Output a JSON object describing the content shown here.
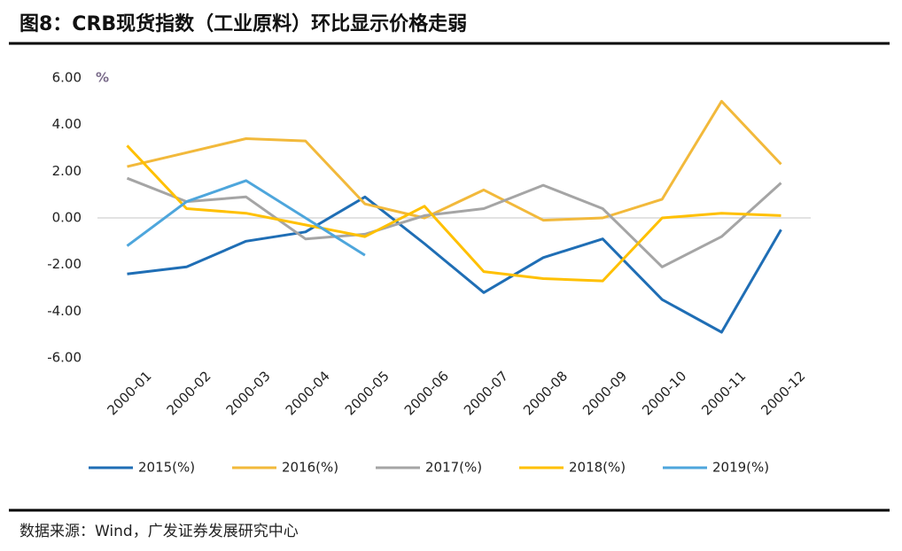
{
  "chart_data": {
    "type": "line",
    "title": "图8：CRB现货指数（工业原料）环比显示价格走弱",
    "y_unit": "%",
    "source": "数据来源：Wind，广发证券发展研究中心",
    "categories": [
      "2000-01",
      "2000-02",
      "2000-03",
      "2000-04",
      "2000-05",
      "2000-06",
      "2000-07",
      "2000-08",
      "2000-09",
      "2000-10",
      "2000-11",
      "2000-12"
    ],
    "ylim": [
      -6,
      6
    ],
    "yticks": [
      {
        "value": 6,
        "label": "6.00"
      },
      {
        "value": 4,
        "label": "4.00"
      },
      {
        "value": 2,
        "label": "2.00"
      },
      {
        "value": 0,
        "label": "0.00"
      },
      {
        "value": -2,
        "label": "-2.00"
      },
      {
        "value": -4,
        "label": "-4.00"
      },
      {
        "value": -6,
        "label": "-6.00"
      }
    ],
    "series": [
      {
        "name": "2015(%)",
        "color": "#1f6eb5",
        "values": [
          -2.4,
          -2.1,
          -1.0,
          -0.6,
          0.9,
          -1.1,
          -3.2,
          -1.7,
          -0.9,
          -3.5,
          -4.9,
          -0.5
        ]
      },
      {
        "name": "2016(%)",
        "color": "#f2b93b",
        "values": [
          2.2,
          2.8,
          3.4,
          3.3,
          0.6,
          0.0,
          1.2,
          -0.1,
          0.0,
          0.8,
          5.0,
          2.3
        ]
      },
      {
        "name": "2017(%)",
        "color": "#a5a5a5",
        "values": [
          1.7,
          0.7,
          0.9,
          -0.9,
          -0.7,
          0.1,
          0.4,
          1.4,
          0.4,
          -2.1,
          -0.8,
          1.5
        ]
      },
      {
        "name": "2018(%)",
        "color": "#ffc000",
        "values": [
          3.1,
          0.4,
          0.2,
          -0.3,
          -0.8,
          0.5,
          -2.3,
          -2.6,
          -2.7,
          0.0,
          0.2,
          0.1
        ]
      },
      {
        "name": "2019(%)",
        "color": "#4ea6dc",
        "values": [
          -1.2,
          0.7,
          1.6,
          0.0,
          -1.6,
          null,
          null,
          null,
          null,
          null,
          null,
          null
        ]
      }
    ]
  }
}
